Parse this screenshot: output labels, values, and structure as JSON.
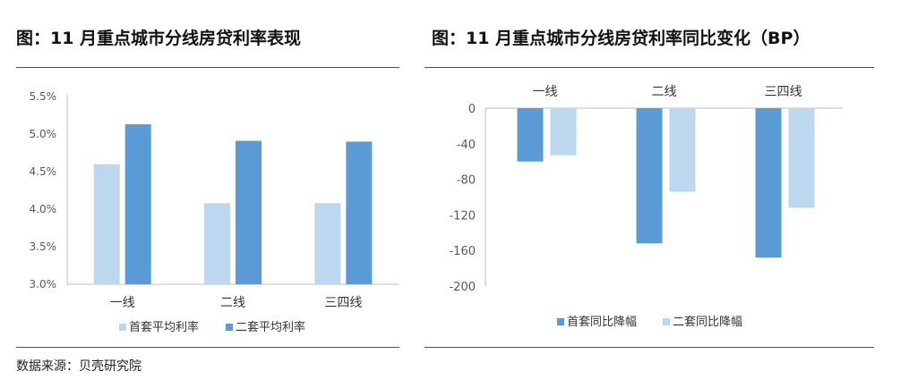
{
  "source_note": "数据来源：贝壳研究院",
  "colors": {
    "first_home": "#bdd7ee",
    "second_home": "#5b9bd5",
    "axis": "#bfbfbf",
    "tick_text": "#595959"
  },
  "chart_data": [
    {
      "type": "bar",
      "title": "图：11 月重点城市分线房贷利率表现",
      "categories": [
        "一线",
        "二线",
        "三四线"
      ],
      "y_ticks": [
        "5.5%",
        "5.0%",
        "4.5%",
        "4.0%",
        "3.5%",
        "3.0%"
      ],
      "ylim": [
        3.0,
        5.5
      ],
      "series": [
        {
          "name": "首套平均利率",
          "values": [
            4.6,
            4.08,
            4.08
          ]
        },
        {
          "name": "二套平均利率",
          "values": [
            5.13,
            4.91,
            4.9
          ]
        }
      ],
      "legend_position": "bottom"
    },
    {
      "type": "bar",
      "title": "图：11 月重点城市分线房贷利率同比变化（BP）",
      "categories": [
        "一线",
        "二线",
        "三四线"
      ],
      "y_ticks": [
        "0",
        "-40",
        "-80",
        "-120",
        "-160",
        "-200"
      ],
      "ylim": [
        -200,
        0
      ],
      "series": [
        {
          "name": "首套同比降幅",
          "values": [
            -60,
            -152,
            -168
          ]
        },
        {
          "name": "二套同比降幅",
          "values": [
            -53,
            -94,
            -112
          ]
        }
      ],
      "legend_position": "bottom"
    }
  ]
}
